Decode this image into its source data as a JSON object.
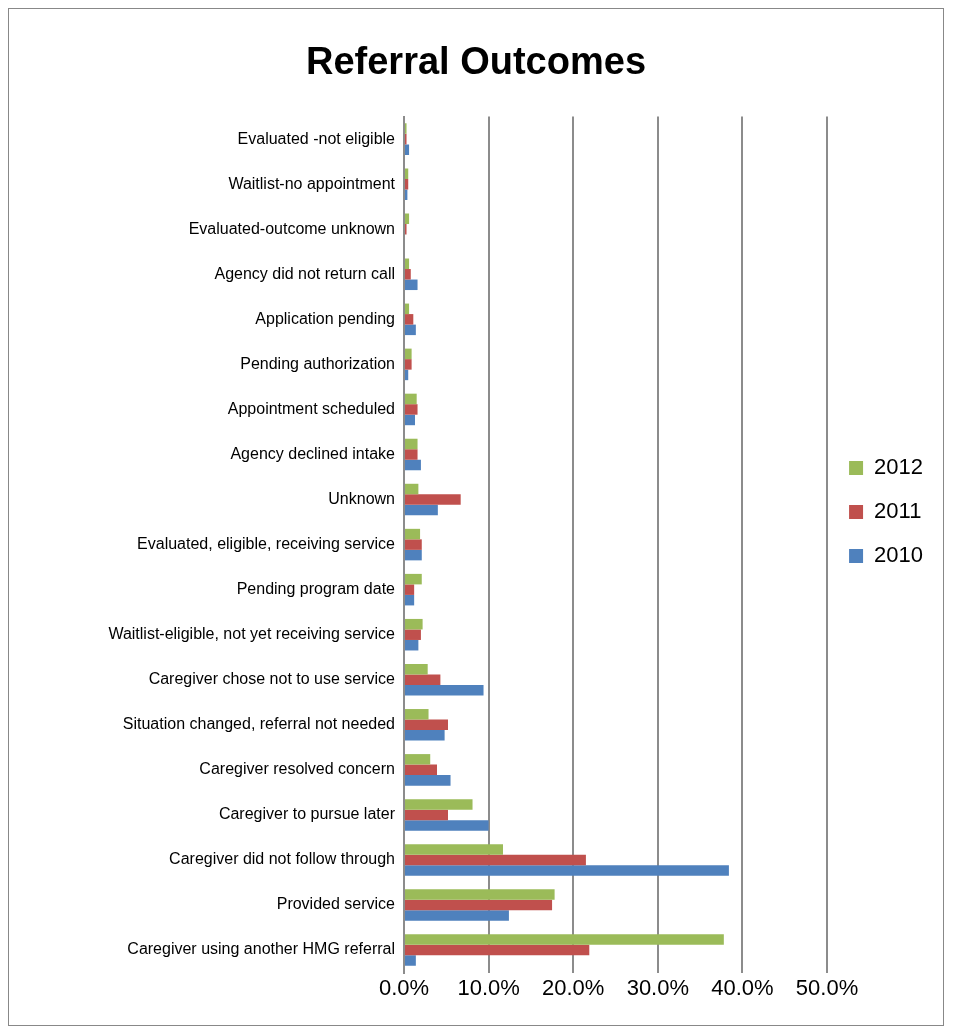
{
  "chart_data": {
    "type": "bar",
    "title": "Referral Outcomes",
    "orientation": "horizontal",
    "categories": [
      "Evaluated -not eligible",
      "Waitlist-no appointment",
      "Evaluated-outcome unknown",
      "Agency did not return call",
      "Application pending",
      "Pending authorization",
      "Appointment scheduled",
      "Agency declined intake",
      "Unknown",
      "Evaluated, eligible, receiving service",
      "Pending program date",
      "Waitlist-eligible, not yet receiving service",
      "Caregiver chose not to use service",
      "Situation changed, referral not needed",
      "Caregiver resolved concern",
      "Caregiver to pursue later",
      "Caregiver did not follow through",
      "Provided service",
      "Caregiver using another HMG referral"
    ],
    "series": [
      {
        "name": "2012",
        "color": "#9bbb59",
        "values": [
          0.3,
          0.5,
          0.6,
          0.6,
          0.6,
          0.9,
          1.5,
          1.6,
          1.7,
          1.9,
          2.1,
          2.2,
          2.8,
          2.9,
          3.1,
          8.1,
          11.7,
          17.8,
          37.8
        ]
      },
      {
        "name": "2011",
        "color": "#c0504d",
        "values": [
          0.3,
          0.5,
          0.3,
          0.8,
          1.1,
          0.9,
          1.6,
          1.6,
          6.7,
          2.1,
          1.2,
          2.0,
          4.3,
          5.2,
          3.9,
          5.2,
          21.5,
          17.5,
          21.9
        ]
      },
      {
        "name": "2010",
        "color": "#4f81bd",
        "values": [
          0.6,
          0.4,
          null,
          1.6,
          1.4,
          0.5,
          1.3,
          2.0,
          4.0,
          2.1,
          1.2,
          1.7,
          9.4,
          4.8,
          5.5,
          10.0,
          38.4,
          12.4,
          1.4
        ]
      }
    ],
    "xlim": [
      0,
      50
    ],
    "xticks": [
      {
        "value": 0,
        "label": "0.0%"
      },
      {
        "value": 10,
        "label": "10.0%"
      },
      {
        "value": 20,
        "label": "20.0%"
      },
      {
        "value": 30,
        "label": "30.0%"
      },
      {
        "value": 40,
        "label": "40.0%"
      },
      {
        "value": 50,
        "label": "50.0%"
      }
    ],
    "grid": "x",
    "legend": "right"
  }
}
